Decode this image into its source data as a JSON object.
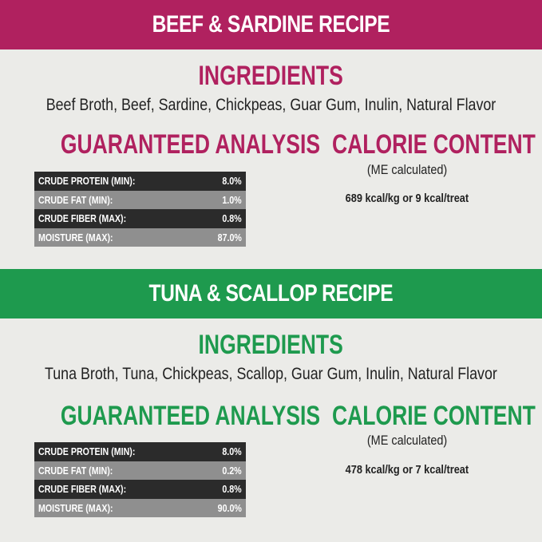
{
  "colors": {
    "beef": "#b0215f",
    "tuna": "#1e9a4e",
    "background": "#ebebe8"
  },
  "recipes": [
    {
      "title": "BEEF & SARDINE RECIPE",
      "ingredients_heading": "INGREDIENTS",
      "ingredients": "Beef Broth, Beef, Sardine, Chickpeas, Guar Gum, Inulin, Natural Flavor",
      "analysis_heading": "GUARANTEED ANALYSIS",
      "analysis": [
        {
          "label": "CRUDE PROTEIN (MIN):",
          "value": "8.0%"
        },
        {
          "label": "CRUDE FAT (MIN):",
          "value": "1.0%"
        },
        {
          "label": "CRUDE FIBER (MAX):",
          "value": "0.8%"
        },
        {
          "label": "MOISTURE (MAX):",
          "value": "87.0%"
        }
      ],
      "calorie_heading": "CALORIE CONTENT",
      "calorie_note": "(ME calculated)",
      "calories": "689 kcal/kg or 9 kcal/treat"
    },
    {
      "title": "TUNA & SCALLOP RECIPE",
      "ingredients_heading": "INGREDIENTS",
      "ingredients": "Tuna Broth, Tuna, Chickpeas, Scallop, Guar Gum, Inulin, Natural Flavor",
      "analysis_heading": "GUARANTEED ANALYSIS",
      "analysis": [
        {
          "label": "CRUDE PROTEIN (MIN):",
          "value": "8.0%"
        },
        {
          "label": "CRUDE FAT (MIN):",
          "value": "0.2%"
        },
        {
          "label": "CRUDE FIBER (MAX):",
          "value": "0.8%"
        },
        {
          "label": "MOISTURE (MAX):",
          "value": "90.0%"
        }
      ],
      "calorie_heading": "CALORIE CONTENT",
      "calorie_note": "(ME calculated)",
      "calories": "478 kcal/kg or 7 kcal/treat"
    }
  ]
}
